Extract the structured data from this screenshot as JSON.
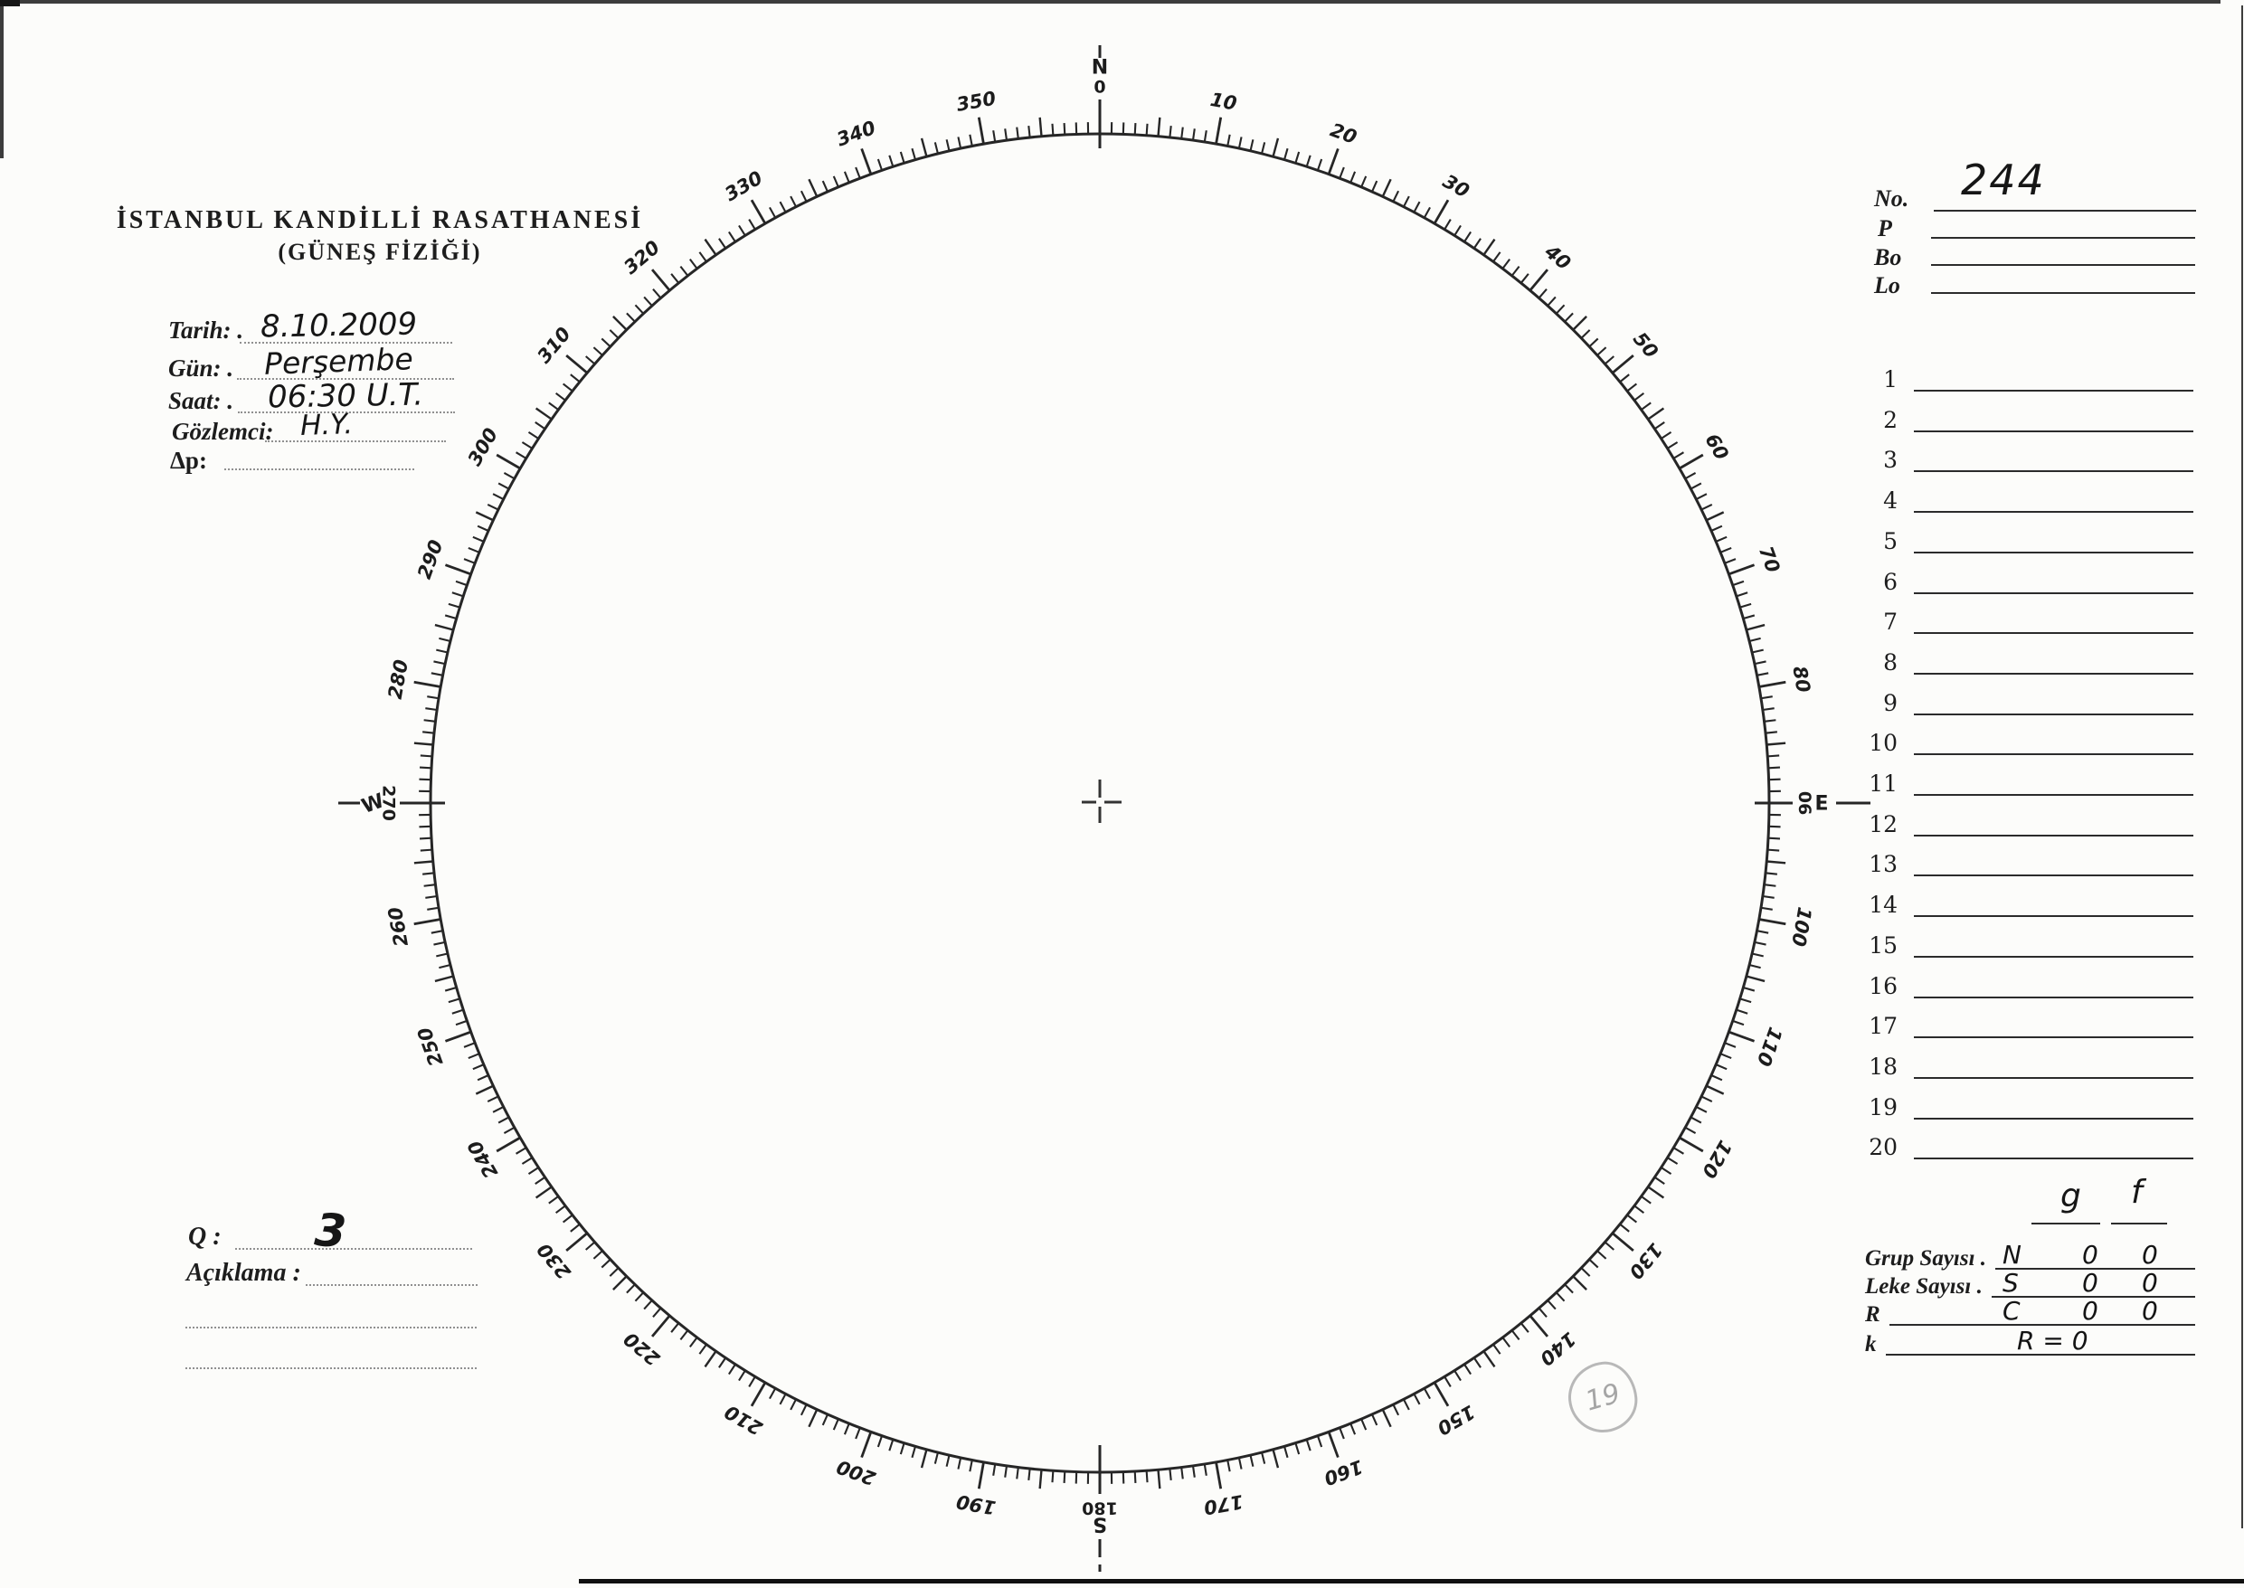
{
  "header": {
    "title": "İSTANBUL KANDİLLİ RASATHANESİ",
    "subtitle": "(GÜNEŞ FİZİĞİ)"
  },
  "observation_fields": [
    {
      "label": "Tarih: .",
      "value": "8.10.2009"
    },
    {
      "label": "Gün: .",
      "value": "Perşembe"
    },
    {
      "label": "Saat: .",
      "value": "06:30 U.T."
    },
    {
      "label": "Gözlemci:",
      "value": "H.Y."
    },
    {
      "label": "Δp:",
      "value": ""
    }
  ],
  "dial": {
    "unit": "degrees",
    "tick_every_deg": 1,
    "medium_tick_every_deg": 5,
    "major_tick_every_deg": 10,
    "degree_labels": [
      {
        "text": "10",
        "angle": 10
      },
      {
        "text": "20",
        "angle": 20
      },
      {
        "text": "30",
        "angle": 30
      },
      {
        "text": "40",
        "angle": 40
      },
      {
        "text": "50",
        "angle": 50
      },
      {
        "text": "60",
        "angle": 60
      },
      {
        "text": "70",
        "angle": 70
      },
      {
        "text": "80",
        "angle": 80
      },
      {
        "text": "100",
        "angle": 100
      },
      {
        "text": "110",
        "angle": 110
      },
      {
        "text": "120",
        "angle": 120
      },
      {
        "text": "130",
        "angle": 130
      },
      {
        "text": "140",
        "angle": 140
      },
      {
        "text": "150",
        "angle": 150
      },
      {
        "text": "160",
        "angle": 160
      },
      {
        "text": "170",
        "angle": 170
      },
      {
        "text": "190",
        "angle": 190
      },
      {
        "text": "200",
        "angle": 200
      },
      {
        "text": "210",
        "angle": 210
      },
      {
        "text": "220",
        "angle": 220
      },
      {
        "text": "230",
        "angle": 230
      },
      {
        "text": "240",
        "angle": 240
      },
      {
        "text": "250",
        "angle": 250
      },
      {
        "text": "260",
        "angle": 260
      },
      {
        "text": "280",
        "angle": 280
      },
      {
        "text": "290",
        "angle": 290
      },
      {
        "text": "300",
        "angle": 300
      },
      {
        "text": "310",
        "angle": 310
      },
      {
        "text": "320",
        "angle": 320
      },
      {
        "text": "330",
        "angle": 330
      },
      {
        "text": "340",
        "angle": 340
      },
      {
        "text": "350",
        "angle": 350
      }
    ],
    "cardinals": [
      {
        "letter": "N",
        "degree": "0",
        "angle": 0
      },
      {
        "letter": "E",
        "degree": "90",
        "angle": 90
      },
      {
        "letter": "S",
        "degree": "180",
        "angle": 180
      },
      {
        "letter": "W",
        "degree": "270",
        "angle": 270
      }
    ]
  },
  "right_panel": {
    "no_label": "No.",
    "no_value": "244",
    "p_label": "P",
    "bo_label": "Bo",
    "lo_label": "Lo",
    "row_numbers": [
      "1",
      "2",
      "3",
      "4",
      "5",
      "6",
      "7",
      "8",
      "9",
      "10",
      "11",
      "12",
      "13",
      "14",
      "15",
      "16",
      "17",
      "18",
      "19",
      "20"
    ],
    "col_g": "g",
    "col_f": "f",
    "summary": [
      {
        "label": "Grup Sayısı .",
        "hand": "N",
        "g": "0",
        "f": "0"
      },
      {
        "label": "Leke Sayısı .",
        "hand": "S",
        "g": "0",
        "f": "0"
      },
      {
        "label": "R",
        "hand": "C",
        "g": "0",
        "f": "0"
      },
      {
        "label": "k",
        "hand": "R = 0",
        "g": "",
        "f": ""
      }
    ]
  },
  "notes": {
    "q_label": "Q :",
    "q_value": "3",
    "aciklama_label": "Açıklama :"
  },
  "pencil_annotation": "19"
}
